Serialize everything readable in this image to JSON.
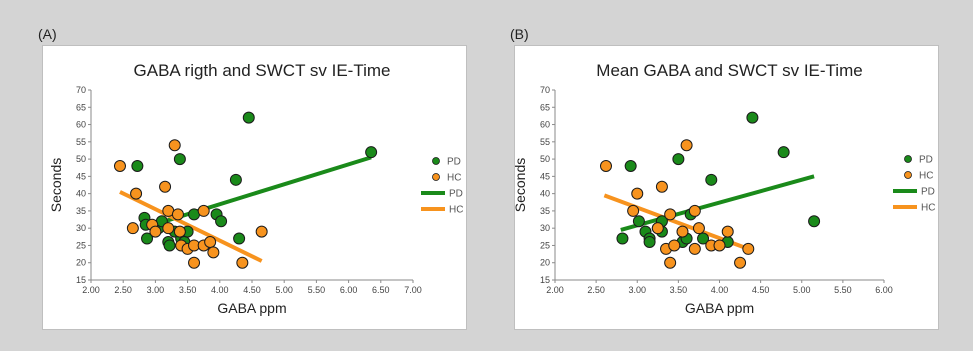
{
  "figure": {
    "background": "#d4d4d4"
  },
  "chart_data": [
    {
      "panel": "(A)",
      "type": "scatter",
      "title": "GABA rigth and SWCT sv IE-Time",
      "xlabel": "GABA ppm",
      "ylabel": "Seconds",
      "xlim": [
        2.0,
        7.0
      ],
      "ylim": [
        15,
        70
      ],
      "xticks": [
        "2.00",
        "2.50",
        "3.00",
        "3.50",
        "4.00",
        "4.50",
        "5.00",
        "5.50",
        "6.00",
        "6.50",
        "7.00"
      ],
      "yticks": [
        "15",
        "20",
        "25",
        "30",
        "35",
        "40",
        "45",
        "50",
        "55",
        "60",
        "65",
        "70"
      ],
      "grid": false,
      "legend_position": "right",
      "series": [
        {
          "name": "PD",
          "kind": "points",
          "color": "#1a8a1a",
          "points": [
            [
              2.72,
              48
            ],
            [
              2.83,
              33
            ],
            [
              2.85,
              31
            ],
            [
              2.87,
              27
            ],
            [
              3.05,
              30
            ],
            [
              3.1,
              32
            ],
            [
              3.2,
              26
            ],
            [
              3.22,
              25
            ],
            [
              3.3,
              29
            ],
            [
              3.38,
              50
            ],
            [
              3.4,
              27
            ],
            [
              3.45,
              26
            ],
            [
              3.5,
              29
            ],
            [
              3.6,
              34
            ],
            [
              3.95,
              34
            ],
            [
              4.02,
              32
            ],
            [
              4.25,
              44
            ],
            [
              4.3,
              27
            ],
            [
              4.45,
              62
            ],
            [
              6.35,
              52
            ]
          ]
        },
        {
          "name": "HC",
          "kind": "points",
          "color": "#f7931e",
          "points": [
            [
              2.45,
              48
            ],
            [
              2.65,
              30
            ],
            [
              2.7,
              40
            ],
            [
              2.95,
              31
            ],
            [
              3.0,
              29
            ],
            [
              3.15,
              42
            ],
            [
              3.2,
              35
            ],
            [
              3.2,
              30
            ],
            [
              3.3,
              54
            ],
            [
              3.35,
              34
            ],
            [
              3.38,
              29
            ],
            [
              3.4,
              25
            ],
            [
              3.5,
              24
            ],
            [
              3.6,
              20
            ],
            [
              3.6,
              25
            ],
            [
              3.75,
              35
            ],
            [
              3.75,
              25
            ],
            [
              3.85,
              26
            ],
            [
              3.9,
              23
            ],
            [
              4.35,
              20
            ],
            [
              4.65,
              29
            ]
          ]
        },
        {
          "name": "PD",
          "kind": "trend",
          "color": "#1a8a1a",
          "points": [
            [
              2.8,
              30
            ],
            [
              6.35,
              50.5
            ]
          ]
        },
        {
          "name": "HC",
          "kind": "trend",
          "color": "#f7931e",
          "points": [
            [
              2.45,
              40.5
            ],
            [
              4.65,
              20.5
            ]
          ]
        }
      ]
    },
    {
      "panel": "(B)",
      "type": "scatter",
      "title": "Mean GABA and SWCT sv IE-Time",
      "xlabel": "GABA ppm",
      "ylabel": "Seconds",
      "xlim": [
        2.0,
        6.0
      ],
      "ylim": [
        15,
        70
      ],
      "xticks": [
        "2.00",
        "2.50",
        "3.00",
        "3.50",
        "4.00",
        "4.50",
        "5.00",
        "5.50",
        "6.00"
      ],
      "yticks": [
        "15",
        "20",
        "25",
        "30",
        "35",
        "40",
        "45",
        "50",
        "55",
        "60",
        "65",
        "70"
      ],
      "grid": false,
      "legend_position": "right",
      "series": [
        {
          "name": "PD",
          "kind": "points",
          "color": "#1a8a1a",
          "points": [
            [
              2.82,
              27
            ],
            [
              2.92,
              48
            ],
            [
              3.02,
              32
            ],
            [
              3.1,
              29
            ],
            [
              3.15,
              27
            ],
            [
              3.15,
              26
            ],
            [
              3.25,
              30
            ],
            [
              3.3,
              29
            ],
            [
              3.3,
              32
            ],
            [
              3.5,
              50
            ],
            [
              3.55,
              26
            ],
            [
              3.6,
              27
            ],
            [
              3.65,
              34
            ],
            [
              3.8,
              27
            ],
            [
              3.9,
              44
            ],
            [
              4.1,
              26
            ],
            [
              4.4,
              62
            ],
            [
              4.78,
              52
            ],
            [
              5.15,
              32
            ]
          ]
        },
        {
          "name": "HC",
          "kind": "points",
          "color": "#f7931e",
          "points": [
            [
              2.62,
              48
            ],
            [
              2.95,
              35
            ],
            [
              3.0,
              40
            ],
            [
              3.25,
              30
            ],
            [
              3.3,
              42
            ],
            [
              3.35,
              24
            ],
            [
              3.4,
              34
            ],
            [
              3.4,
              20
            ],
            [
              3.45,
              25
            ],
            [
              3.55,
              29
            ],
            [
              3.6,
              54
            ],
            [
              3.7,
              35
            ],
            [
              3.7,
              24
            ],
            [
              3.75,
              30
            ],
            [
              3.9,
              25
            ],
            [
              4.0,
              25
            ],
            [
              4.1,
              29
            ],
            [
              4.25,
              20
            ],
            [
              4.35,
              24
            ]
          ]
        },
        {
          "name": "PD",
          "kind": "trend",
          "color": "#1a8a1a",
          "points": [
            [
              2.8,
              29.5
            ],
            [
              5.15,
              45
            ]
          ]
        },
        {
          "name": "HC",
          "kind": "trend",
          "color": "#f7931e",
          "points": [
            [
              2.6,
              39.5
            ],
            [
              4.35,
              24
            ]
          ]
        }
      ]
    }
  ]
}
